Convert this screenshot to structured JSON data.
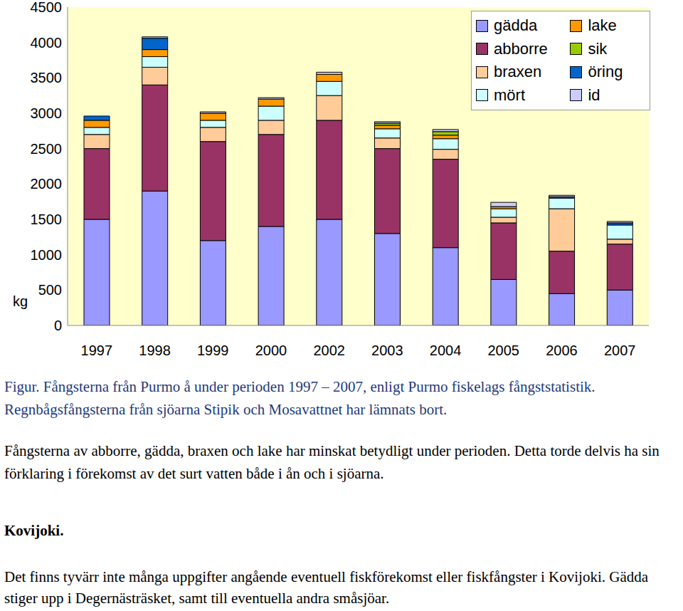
{
  "chart_data": {
    "type": "bar",
    "stacked": true,
    "grid": false,
    "y_label": "kg",
    "categories": [
      "1997",
      "1998",
      "1999",
      "2000",
      "2002",
      "2003",
      "2004",
      "2005",
      "2006",
      "2007"
    ],
    "ylim": [
      0,
      4500
    ],
    "yticks": [
      0,
      500,
      1000,
      1500,
      2000,
      2500,
      3000,
      3500,
      4000,
      4500
    ],
    "legend": "upper right",
    "series": [
      {
        "name": "gädda",
        "color": "#9999ff",
        "values": [
          1500,
          1900,
          1200,
          1400,
          1500,
          1300,
          1100,
          650,
          450,
          500
        ]
      },
      {
        "name": "abborre",
        "color": "#993366",
        "values": [
          1000,
          1500,
          1400,
          1300,
          1400,
          1200,
          1250,
          800,
          600,
          650
        ]
      },
      {
        "name": "braxen",
        "color": "#ffcc99",
        "values": [
          200,
          250,
          200,
          200,
          350,
          150,
          140,
          80,
          600,
          70
        ]
      },
      {
        "name": "mört",
        "color": "#ccffff",
        "values": [
          100,
          150,
          100,
          200,
          200,
          130,
          150,
          120,
          150,
          200
        ]
      },
      {
        "name": "lake",
        "color": "#ff9900",
        "values": [
          100,
          100,
          100,
          100,
          100,
          50,
          50,
          30,
          0,
          0
        ]
      },
      {
        "name": "sik",
        "color": "#99cc00",
        "values": [
          0,
          0,
          0,
          0,
          0,
          30,
          50,
          0,
          0,
          0
        ]
      },
      {
        "name": "öring",
        "color": "#0066cc",
        "values": [
          60,
          160,
          0,
          0,
          0,
          0,
          0,
          0,
          20,
          30
        ]
      },
      {
        "name": "id",
        "color": "#ccccff",
        "values": [
          0,
          20,
          20,
          20,
          30,
          20,
          30,
          60,
          20,
          20
        ]
      }
    ]
  },
  "caption": "Figur. Fångsterna från Purmo å under perioden 1997 – 2007, enligt Purmo fiskelags fångststatistik. Regnbågsfångsterna från sjöarna Stipik och Mosavattnet har lämnats bort.",
  "paragraph_1": "Fångsterna av abborre, gädda, braxen och lake har minskat betydligt under perioden. Detta torde delvis ha sin förklaring i förekomst av det surt vatten både i ån och i sjöarna.",
  "heading": "Kovijoki.",
  "paragraph_2": "Det finns tyvärr inte många uppgifter angående eventuell fiskförekomst eller fiskfångster i Kovijoki. Gädda stiger upp i Degernästräsket, samt till eventuella andra småsjöar."
}
